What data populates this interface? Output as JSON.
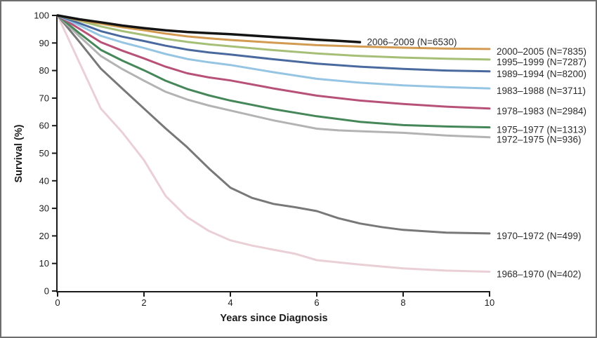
{
  "figure": {
    "background": "#ffffff",
    "border_color": "#6e6e6e",
    "axis_color": "#1a1a1a"
  },
  "chart_data": {
    "type": "line",
    "title": "",
    "xlabel": "Years since Diagnosis",
    "ylabel": "Survival (%)",
    "xlim": [
      0,
      10
    ],
    "ylim": [
      0,
      100
    ],
    "x_ticks": [
      "0",
      "2",
      "4",
      "6",
      "8",
      "10"
    ],
    "x_tick_values": [
      0,
      2,
      4,
      6,
      8,
      10
    ],
    "y_ticks": [
      "0",
      "10",
      "20",
      "30",
      "40",
      "50",
      "60",
      "70",
      "80",
      "90",
      "100"
    ],
    "y_tick_values": [
      0,
      10,
      20,
      30,
      40,
      50,
      60,
      70,
      80,
      90,
      100
    ],
    "grid": false,
    "legend_position": "labels-right-of-curves",
    "series": [
      {
        "name": "2006-2009",
        "label": "2006–2009 (N=6530)",
        "n": 6530,
        "color": "#141414",
        "line_width": 3.5,
        "inline_label": true,
        "points": [
          [
            0,
            100
          ],
          [
            0.5,
            98.6
          ],
          [
            1,
            97.5
          ],
          [
            1.5,
            96.3
          ],
          [
            2,
            95.4
          ],
          [
            2.5,
            94.6
          ],
          [
            3,
            94.0
          ],
          [
            3.5,
            93.6
          ],
          [
            4,
            93.2
          ],
          [
            4.5,
            92.7
          ],
          [
            5,
            92.2
          ],
          [
            5.5,
            91.7
          ],
          [
            6,
            91.2
          ],
          [
            6.5,
            90.8
          ],
          [
            7,
            90.3
          ]
        ]
      },
      {
        "name": "2000-2005",
        "label": "2000–2005 (N=7835)",
        "n": 7835,
        "color": "#d29b51",
        "line_width": 3,
        "inline_label": false,
        "points": [
          [
            0,
            100
          ],
          [
            0.5,
            98.3
          ],
          [
            1,
            97.0
          ],
          [
            1.5,
            95.7
          ],
          [
            2,
            94.6
          ],
          [
            2.5,
            93.4
          ],
          [
            3,
            92.4
          ],
          [
            3.5,
            91.7
          ],
          [
            4,
            91.1
          ],
          [
            5,
            90.1
          ],
          [
            6,
            89.2
          ],
          [
            7,
            88.7
          ],
          [
            8,
            88.3
          ],
          [
            9,
            88.0
          ],
          [
            10,
            87.8
          ]
        ]
      },
      {
        "name": "1995-1999",
        "label": "1995–1999 (N=7287)",
        "n": 7287,
        "color": "#a6bf77",
        "line_width": 3,
        "inline_label": false,
        "points": [
          [
            0,
            100
          ],
          [
            0.5,
            98.1
          ],
          [
            1,
            96.0
          ],
          [
            1.5,
            94.3
          ],
          [
            2,
            92.9
          ],
          [
            2.5,
            91.5
          ],
          [
            3,
            90.4
          ],
          [
            3.5,
            89.5
          ],
          [
            4,
            88.8
          ],
          [
            5,
            87.4
          ],
          [
            6,
            86.2
          ],
          [
            7,
            85.3
          ],
          [
            8,
            84.7
          ],
          [
            9,
            84.3
          ],
          [
            10,
            84.0
          ]
        ]
      },
      {
        "name": "1989-1994",
        "label": "1989–1994 (N=8200)",
        "n": 8200,
        "color": "#49699f",
        "line_width": 3,
        "inline_label": false,
        "points": [
          [
            0,
            100
          ],
          [
            0.5,
            97.2
          ],
          [
            1,
            94.3
          ],
          [
            1.5,
            92.3
          ],
          [
            2,
            90.7
          ],
          [
            2.5,
            89.0
          ],
          [
            3,
            87.6
          ],
          [
            3.5,
            86.6
          ],
          [
            4,
            85.8
          ],
          [
            5,
            84.1
          ],
          [
            6,
            82.5
          ],
          [
            7,
            81.4
          ],
          [
            8,
            80.6
          ],
          [
            9,
            80.0
          ],
          [
            10,
            79.7
          ]
        ]
      },
      {
        "name": "1983-1988",
        "label": "1983–1988 (N=3711)",
        "n": 3711,
        "color": "#96c5e4",
        "line_width": 3,
        "inline_label": false,
        "points": [
          [
            0,
            100
          ],
          [
            0.5,
            96.4
          ],
          [
            1,
            92.6
          ],
          [
            1.5,
            90.2
          ],
          [
            2,
            88.2
          ],
          [
            2.5,
            86.0
          ],
          [
            3,
            84.2
          ],
          [
            3.5,
            83.0
          ],
          [
            4,
            82.0
          ],
          [
            5,
            79.4
          ],
          [
            6,
            77.0
          ],
          [
            7,
            75.6
          ],
          [
            8,
            74.6
          ],
          [
            9,
            74.0
          ],
          [
            10,
            73.5
          ]
        ]
      },
      {
        "name": "1978-1983",
        "label": "1978–1983 (N=2984)",
        "n": 2984,
        "color": "#b85178",
        "line_width": 3,
        "inline_label": false,
        "points": [
          [
            0,
            100
          ],
          [
            0.5,
            95.2
          ],
          [
            1,
            90.3
          ],
          [
            1.5,
            87.2
          ],
          [
            2,
            84.4
          ],
          [
            2.5,
            81.4
          ],
          [
            3,
            79.0
          ],
          [
            3.5,
            77.5
          ],
          [
            4,
            76.4
          ],
          [
            5,
            73.5
          ],
          [
            6,
            70.9
          ],
          [
            7,
            69.1
          ],
          [
            8,
            67.9
          ],
          [
            9,
            66.9
          ],
          [
            10,
            66.2
          ]
        ]
      },
      {
        "name": "1975-1977",
        "label": "1975–1977 (N=1313)",
        "n": 1313,
        "color": "#46875a",
        "line_width": 3,
        "inline_label": false,
        "points": [
          [
            0,
            100
          ],
          [
            0.5,
            93.6
          ],
          [
            1,
            87.5
          ],
          [
            1.5,
            83.6
          ],
          [
            2,
            80.1
          ],
          [
            2.5,
            76.3
          ],
          [
            3,
            73.3
          ],
          [
            3.5,
            71.0
          ],
          [
            4,
            69.1
          ],
          [
            5,
            66.0
          ],
          [
            6,
            63.4
          ],
          [
            7,
            61.4
          ],
          [
            8,
            60.2
          ],
          [
            9,
            59.7
          ],
          [
            10,
            59.4
          ]
        ]
      },
      {
        "name": "1972-1975",
        "label": "1972–1975 (N=936)",
        "n": 936,
        "color": "#b3b3b3",
        "line_width": 3,
        "inline_label": false,
        "points": [
          [
            0,
            100
          ],
          [
            0.5,
            92.5
          ],
          [
            1,
            85.3
          ],
          [
            1.5,
            80.5
          ],
          [
            2,
            76.3
          ],
          [
            2.5,
            72.3
          ],
          [
            3,
            69.5
          ],
          [
            3.5,
            67.3
          ],
          [
            4,
            65.5
          ],
          [
            5,
            61.9
          ],
          [
            6,
            58.9
          ],
          [
            6.5,
            58.3
          ],
          [
            7,
            58.0
          ],
          [
            8,
            57.4
          ],
          [
            9,
            56.4
          ],
          [
            10,
            55.8
          ]
        ]
      },
      {
        "name": "1970-1972",
        "label": "1970–1972 (N=499)",
        "n": 499,
        "color": "#787878",
        "line_width": 3,
        "inline_label": false,
        "points": [
          [
            0,
            100
          ],
          [
            0.5,
            90.5
          ],
          [
            1,
            80.7
          ],
          [
            1.5,
            73.4
          ],
          [
            2,
            66.2
          ],
          [
            2.5,
            59.0
          ],
          [
            3,
            52.2
          ],
          [
            3.5,
            44.5
          ],
          [
            4,
            37.5
          ],
          [
            4.5,
            33.8
          ],
          [
            5,
            31.6
          ],
          [
            5.5,
            30.4
          ],
          [
            6,
            29.0
          ],
          [
            6.5,
            26.4
          ],
          [
            7,
            24.5
          ],
          [
            7.5,
            23.2
          ],
          [
            8,
            22.2
          ],
          [
            9,
            21.2
          ],
          [
            10,
            20.9
          ]
        ]
      },
      {
        "name": "1968-1970",
        "label": "1968–1970 (N=402)",
        "n": 402,
        "color": "#ead0d6",
        "line_width": 3,
        "inline_label": false,
        "points": [
          [
            0,
            100
          ],
          [
            0.5,
            83.0
          ],
          [
            1,
            66.2
          ],
          [
            1.5,
            57.5
          ],
          [
            2,
            47.5
          ],
          [
            2.5,
            34.5
          ],
          [
            3,
            26.8
          ],
          [
            3.5,
            21.8
          ],
          [
            4,
            18.4
          ],
          [
            4.5,
            16.5
          ],
          [
            5,
            15.0
          ],
          [
            5.5,
            13.5
          ],
          [
            6,
            11.2
          ],
          [
            6.5,
            10.4
          ],
          [
            7,
            9.6
          ],
          [
            8,
            8.2
          ],
          [
            9,
            7.4
          ],
          [
            10,
            7.0
          ]
        ]
      }
    ]
  }
}
